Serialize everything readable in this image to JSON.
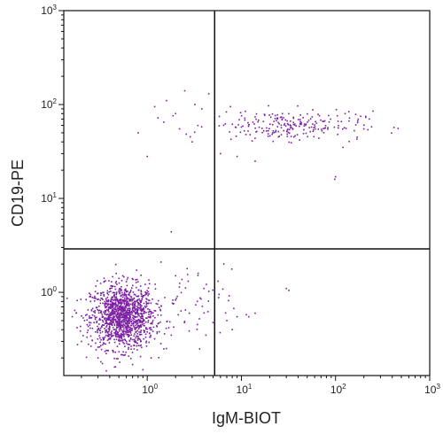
{
  "chart_data": {
    "type": "scatter",
    "title": "",
    "xlabel": "IgM-BIOT",
    "ylabel": "CD19-PE",
    "x_scale": "log",
    "y_scale": "log",
    "xlim": [
      0.13,
      1000
    ],
    "ylim": [
      0.13,
      1000
    ],
    "x_ticks": [
      {
        "value": 1,
        "base": "10",
        "exp": "0"
      },
      {
        "value": 10,
        "base": "10",
        "exp": "1"
      },
      {
        "value": 100,
        "base": "10",
        "exp": "2"
      },
      {
        "value": 1000,
        "base": "10",
        "exp": "3"
      }
    ],
    "y_ticks": [
      {
        "value": 1,
        "base": "10",
        "exp": "0"
      },
      {
        "value": 10,
        "base": "10",
        "exp": "1"
      },
      {
        "value": 100,
        "base": "10",
        "exp": "2"
      },
      {
        "value": 1000,
        "base": "10",
        "exp": "3"
      }
    ],
    "gates": {
      "x": 5.2,
      "y": 2.9
    },
    "grid": false,
    "legend": "none",
    "point_color": "#7a1fa2",
    "populations": [
      {
        "x_center": 0.55,
        "y_center": 0.55,
        "x_spread_decades": 0.17,
        "y_spread_decades": 0.17,
        "count": 1300
      },
      {
        "x_center": 30,
        "y_center": 60,
        "x_spread_decades": 0.4,
        "y_spread_decades": 0.08,
        "count": 230
      },
      {
        "x_center": 2.5,
        "y_center": 0.7,
        "x_spread_decades": 0.25,
        "y_spread_decades": 0.2,
        "count": 60
      }
    ],
    "points": [
      [
        2.5,
        140
      ],
      [
        1.6,
        110
      ],
      [
        1.5,
        65
      ],
      [
        0.8,
        50
      ],
      [
        1.0,
        28
      ],
      [
        1.8,
        4.4
      ],
      [
        4.5,
        130
      ],
      [
        3.8,
        90
      ],
      [
        2.2,
        55
      ],
      [
        1.3,
        72
      ],
      [
        3.0,
        40
      ],
      [
        6.0,
        30
      ],
      [
        98,
        16
      ],
      [
        100,
        17
      ],
      [
        200,
        55
      ],
      [
        250,
        85
      ],
      [
        170,
        45
      ],
      [
        75,
        50
      ],
      [
        120,
        35
      ],
      [
        9,
        28
      ],
      [
        14,
        25
      ],
      [
        3.2,
        100
      ],
      [
        2.0,
        80
      ],
      [
        1.2,
        95
      ],
      [
        6.5,
        2.0
      ],
      [
        4.0,
        1.1
      ],
      [
        7.0,
        0.5
      ],
      [
        9.0,
        0.55
      ],
      [
        30,
        1.1
      ],
      [
        32,
        1.05
      ],
      [
        12,
        0.55
      ],
      [
        14,
        0.6
      ],
      [
        8,
        0.4
      ],
      [
        5.8,
        0.95
      ],
      [
        4.2,
        0.35
      ],
      [
        3.6,
        0.25
      ],
      [
        2.8,
        0.6
      ],
      [
        3.4,
        0.8
      ],
      [
        1.8,
        0.35
      ],
      [
        2.0,
        1.5
      ],
      [
        1.4,
        2.1
      ],
      [
        0.6,
        1.3
      ],
      [
        0.55,
        1.5
      ],
      [
        0.35,
        1.3
      ],
      [
        0.18,
        0.42
      ],
      [
        0.16,
        0.55
      ],
      [
        0.2,
        0.3
      ],
      [
        0.3,
        0.2
      ],
      [
        0.45,
        0.16
      ],
      [
        0.7,
        0.17
      ],
      [
        1.1,
        0.2
      ],
      [
        1.5,
        0.25
      ],
      [
        0.9,
        0.15
      ],
      [
        0.25,
        0.8
      ]
    ]
  }
}
